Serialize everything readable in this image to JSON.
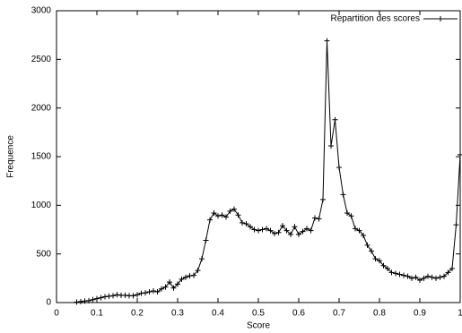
{
  "chart_data": {
    "type": "line",
    "xlabel": "Score",
    "ylabel": "Frequence",
    "x": [
      0.05,
      0.06,
      0.07,
      0.08,
      0.09,
      0.1,
      0.11,
      0.12,
      0.13,
      0.14,
      0.15,
      0.16,
      0.17,
      0.18,
      0.19,
      0.2,
      0.21,
      0.22,
      0.23,
      0.24,
      0.25,
      0.26,
      0.27,
      0.28,
      0.29,
      0.3,
      0.31,
      0.32,
      0.33,
      0.34,
      0.35,
      0.36,
      0.37,
      0.38,
      0.39,
      0.4,
      0.41,
      0.42,
      0.43,
      0.44,
      0.45,
      0.46,
      0.47,
      0.48,
      0.49,
      0.5,
      0.51,
      0.52,
      0.53,
      0.54,
      0.55,
      0.56,
      0.57,
      0.58,
      0.59,
      0.6,
      0.61,
      0.62,
      0.63,
      0.64,
      0.65,
      0.66,
      0.67,
      0.68,
      0.69,
      0.7,
      0.71,
      0.72,
      0.73,
      0.74,
      0.75,
      0.76,
      0.77,
      0.78,
      0.79,
      0.8,
      0.81,
      0.82,
      0.83,
      0.84,
      0.85,
      0.86,
      0.87,
      0.88,
      0.89,
      0.9,
      0.91,
      0.92,
      0.93,
      0.94,
      0.95,
      0.96,
      0.97,
      0.98,
      0.99,
      1.0
    ],
    "series": [
      {
        "name": "Repartition des scores",
        "color": "#000000",
        "values": [
          5,
          10,
          15,
          20,
          30,
          40,
          50,
          60,
          65,
          70,
          80,
          75,
          75,
          70,
          70,
          80,
          95,
          100,
          110,
          120,
          110,
          140,
          160,
          210,
          150,
          190,
          240,
          260,
          275,
          280,
          330,
          450,
          640,
          850,
          920,
          890,
          900,
          880,
          940,
          960,
          900,
          820,
          810,
          780,
          750,
          740,
          750,
          760,
          740,
          710,
          720,
          790,
          740,
          700,
          780,
          700,
          730,
          760,
          740,
          870,
          860,
          1060,
          2690,
          1610,
          1880,
          1390,
          1110,
          920,
          890,
          760,
          740,
          690,
          590,
          530,
          450,
          430,
          380,
          350,
          310,
          300,
          290,
          280,
          270,
          250,
          260,
          230,
          250,
          270,
          260,
          250,
          260,
          270,
          310,
          350,
          800,
          1520
        ]
      }
    ],
    "xlim": [
      0,
      1
    ],
    "xticks": [
      0,
      0.1,
      0.2,
      0.3,
      0.4,
      0.5,
      0.6,
      0.7,
      0.8,
      0.9,
      1
    ],
    "ylim": [
      0,
      3000
    ],
    "yticks": [
      0,
      500,
      1000,
      1500,
      2000,
      2500,
      3000
    ],
    "grid": false,
    "legend": "top-right"
  }
}
